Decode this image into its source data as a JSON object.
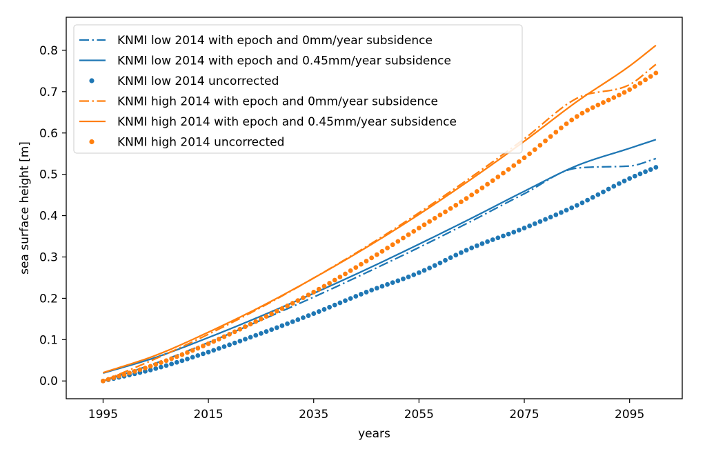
{
  "chart_data": {
    "type": "line",
    "title": "",
    "xlabel": "years",
    "ylabel": "sea surface height [m]",
    "xlim": [
      1988,
      2105
    ],
    "ylim": [
      -0.043,
      0.88
    ],
    "xticks": [
      1995,
      2015,
      2035,
      2055,
      2075,
      2095
    ],
    "yticks": [
      0.0,
      0.1,
      0.2,
      0.3,
      0.4,
      0.5,
      0.6,
      0.7,
      0.8
    ],
    "ytick_labels": [
      "0.0",
      "0.1",
      "0.2",
      "0.3",
      "0.4",
      "0.5",
      "0.6",
      "0.7",
      "0.8"
    ],
    "grid": false,
    "legend_position": "upper-left",
    "colors": {
      "low": "#1f77b4",
      "high": "#ff7f0e",
      "frame": "#000000"
    },
    "x_range": [
      1995,
      2100
    ],
    "series": [
      {
        "name": "KNMI low 2014 with epoch and 0mm/year subsidence",
        "color": "#1f77b4",
        "style": "dashdot",
        "x": [
          1995,
          2005,
          2015,
          2025,
          2035,
          2045,
          2055,
          2065,
          2075,
          2085,
          2095,
          2100
        ],
        "y": [
          0.0,
          0.043,
          0.093,
          0.147,
          0.203,
          0.262,
          0.323,
          0.387,
          0.453,
          0.515,
          0.52,
          0.538
        ]
      },
      {
        "name": "KNMI low 2014 with epoch and 0.45mm/year subsidence",
        "color": "#1f77b4",
        "style": "solid",
        "x": [
          1995,
          2005,
          2015,
          2025,
          2035,
          2045,
          2055,
          2065,
          2075,
          2085,
          2095,
          2100
        ],
        "y": [
          0.019,
          0.057,
          0.105,
          0.157,
          0.212,
          0.27,
          0.331,
          0.394,
          0.459,
          0.521,
          0.563,
          0.584
        ]
      },
      {
        "name": "KNMI low 2014 uncorrected",
        "color": "#1f77b4",
        "style": "dots",
        "x": [
          1995,
          2005,
          2015,
          2025,
          2035,
          2045,
          2055,
          2065,
          2075,
          2085,
          2095,
          2100
        ],
        "y": [
          0.0,
          0.03,
          0.07,
          0.115,
          0.163,
          0.215,
          0.262,
          0.322,
          0.37,
          0.425,
          0.49,
          0.517
        ]
      },
      {
        "name": "KNMI high 2014 with epoch and 0mm/year subsidence",
        "color": "#ff7f0e",
        "style": "dashdot",
        "x": [
          1995,
          2005,
          2015,
          2025,
          2035,
          2045,
          2055,
          2065,
          2075,
          2085,
          2095,
          2100
        ],
        "y": [
          0.0,
          0.054,
          0.113,
          0.178,
          0.249,
          0.325,
          0.407,
          0.494,
          0.586,
          0.684,
          0.717,
          0.766
        ]
      },
      {
        "name": "KNMI high 2014 with epoch and 0.45mm/year subsidence",
        "color": "#ff7f0e",
        "style": "solid",
        "x": [
          1995,
          2005,
          2015,
          2025,
          2035,
          2045,
          2055,
          2065,
          2075,
          2085,
          2095,
          2100
        ],
        "y": [
          0.02,
          0.062,
          0.118,
          0.18,
          0.249,
          0.323,
          0.403,
          0.489,
          0.58,
          0.676,
          0.762,
          0.812
        ]
      },
      {
        "name": "KNMI high 2014 uncorrected",
        "color": "#ff7f0e",
        "style": "dots",
        "x": [
          1995,
          2005,
          2015,
          2025,
          2035,
          2045,
          2055,
          2065,
          2075,
          2085,
          2095,
          2100
        ],
        "y": [
          0.0,
          0.04,
          0.09,
          0.15,
          0.215,
          0.29,
          0.37,
          0.45,
          0.54,
          0.64,
          0.705,
          0.745
        ]
      }
    ]
  }
}
